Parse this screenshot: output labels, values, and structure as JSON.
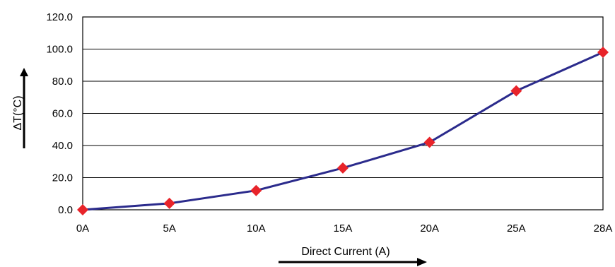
{
  "chart_data": {
    "type": "line",
    "title": "",
    "xlabel": "Direct Current (A)",
    "ylabel": "ΔT(°C)",
    "categories": [
      "0A",
      "5A",
      "10A",
      "15A",
      "20A",
      "25A",
      "28A"
    ],
    "series": [
      {
        "values": [
          0.0,
          4.0,
          12.0,
          26.0,
          42.0,
          74.0,
          98.0
        ]
      }
    ],
    "y_ticks": [
      "0.0",
      "20.0",
      "40.0",
      "60.0",
      "80.0",
      "100.0",
      "120.0"
    ],
    "ylim": [
      0,
      120
    ],
    "grid": "horizontal",
    "legend": "none",
    "colors": {
      "line": "#2b2b8c",
      "marker": "#e8242a",
      "grid": "#000000",
      "axis_arrow": "#000000"
    }
  }
}
